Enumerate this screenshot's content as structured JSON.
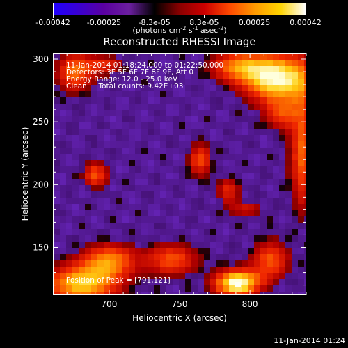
{
  "colorbar": {
    "min": -0.00042,
    "max": 0.00042,
    "tick_values": [
      -0.00042,
      -0.00025,
      -8.3e-05,
      8.3e-05,
      0.00025,
      0.00042
    ],
    "tick_labels": [
      "-0.00042",
      "-0.00025",
      "-8.3e-05",
      "8.3e-05",
      "0.00025",
      "0.00042"
    ],
    "units": {
      "main": "(photons cm",
      "exp1": "-2",
      "mid": " s",
      "exp2": "-1",
      "end": " asec",
      "exp3": "-2",
      "close": ")"
    },
    "stops": [
      "#1f00ff",
      "#3a00d0",
      "#5a00a0",
      "#6c1fa0",
      "#000000",
      "#8a0000",
      "#cc0000",
      "#ff4a00",
      "#ff9a00",
      "#ffd400",
      "#ffffff"
    ]
  },
  "chart_data": {
    "type": "heatmap",
    "title": "Reconstructed RHESSI Image",
    "xlabel": "Heliocentric X (arcsec)",
    "ylabel": "Heliocentric Y (arcsec)",
    "xlim": [
      660,
      840
    ],
    "ylim": [
      112,
      305
    ],
    "x_ticks": [
      700,
      750,
      800
    ],
    "y_ticks": [
      150,
      200,
      250,
      300
    ],
    "info_lines": [
      "11-Jan-2014 01:18:24.000 to 01:22:50.000",
      "Detectors: 3F 5F 6F 7F 8F 9F, Att 0",
      "Energy Range: 12.0 - 25.0 keV",
      "Clean     Total counts: 9.42E+03"
    ],
    "peak_label": "Position of Peak = [791,121]",
    "peak_position": [
      791,
      121
    ],
    "blobs": [
      {
        "x": 680,
        "y": 120,
        "sigma_x": 20,
        "sigma_y": 12,
        "amp": 0.8
      },
      {
        "x": 700,
        "y": 140,
        "sigma_x": 14,
        "sigma_y": 10,
        "amp": 0.6
      },
      {
        "x": 745,
        "y": 140,
        "sigma_x": 14,
        "sigma_y": 10,
        "amp": 0.55
      },
      {
        "x": 791,
        "y": 121,
        "sigma_x": 12,
        "sigma_y": 8,
        "amp": 1.0
      },
      {
        "x": 815,
        "y": 140,
        "sigma_x": 10,
        "sigma_y": 12,
        "amp": 0.55
      },
      {
        "x": 820,
        "y": 285,
        "sigma_x": 18,
        "sigma_y": 15,
        "amp": 0.95
      },
      {
        "x": 790,
        "y": 295,
        "sigma_x": 14,
        "sigma_y": 9,
        "amp": 0.55
      },
      {
        "x": 675,
        "y": 290,
        "sigma_x": 10,
        "sigma_y": 12,
        "amp": 0.6
      },
      {
        "x": 698,
        "y": 296,
        "sigma_x": 10,
        "sigma_y": 6,
        "amp": 0.4
      },
      {
        "x": 690,
        "y": 208,
        "sigma_x": 7,
        "sigma_y": 8,
        "amp": 0.55
      },
      {
        "x": 765,
        "y": 220,
        "sigma_x": 6,
        "sigma_y": 10,
        "amp": 0.55
      },
      {
        "x": 785,
        "y": 195,
        "sigma_x": 6,
        "sigma_y": 8,
        "amp": 0.45
      },
      {
        "x": 798,
        "y": 180,
        "sigma_x": 10,
        "sigma_y": 5,
        "amp": 0.35
      },
      {
        "x": 838,
        "y": 225,
        "sigma_x": 7,
        "sigma_y": 35,
        "amp": 0.6
      },
      {
        "x": 822,
        "y": 255,
        "sigma_x": 8,
        "sigma_y": 8,
        "amp": 0.4
      }
    ]
  },
  "footer": {
    "date": "11-Jan-2014 01:24"
  }
}
